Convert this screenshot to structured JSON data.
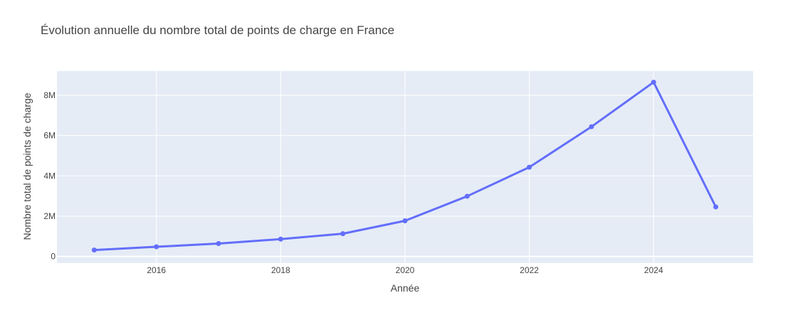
{
  "chart_data": {
    "type": "line",
    "title": "Évolution annuelle du nombre total de points de charge en France",
    "xlabel": "Année",
    "ylabel": "Nombre total de points de charge",
    "x": [
      2015,
      2016,
      2017,
      2018,
      2019,
      2020,
      2021,
      2022,
      2023,
      2024,
      2025
    ],
    "series": [
      {
        "name": "Nombre total de points de charge",
        "values": [
          320000,
          480000,
          640000,
          860000,
          1130000,
          1770000,
          2990000,
          4430000,
          6440000,
          8650000,
          2460000
        ]
      }
    ],
    "xlim": [
      2014.4,
      2025.6
    ],
    "ylim": [
      -330000,
      9200000
    ],
    "x_ticks": [
      2016,
      2018,
      2020,
      2022,
      2024
    ],
    "x_tick_labels": [
      "2016",
      "2018",
      "2020",
      "2022",
      "2024"
    ],
    "y_ticks": [
      0,
      2000000,
      4000000,
      6000000,
      8000000
    ],
    "y_tick_labels": [
      "0",
      "2M",
      "4M",
      "6M",
      "8M"
    ],
    "grid": true,
    "colors": {
      "line": "#636efa",
      "plot_bg": "#e5ecf6",
      "grid": "#ffffff",
      "text": "#444444"
    }
  }
}
